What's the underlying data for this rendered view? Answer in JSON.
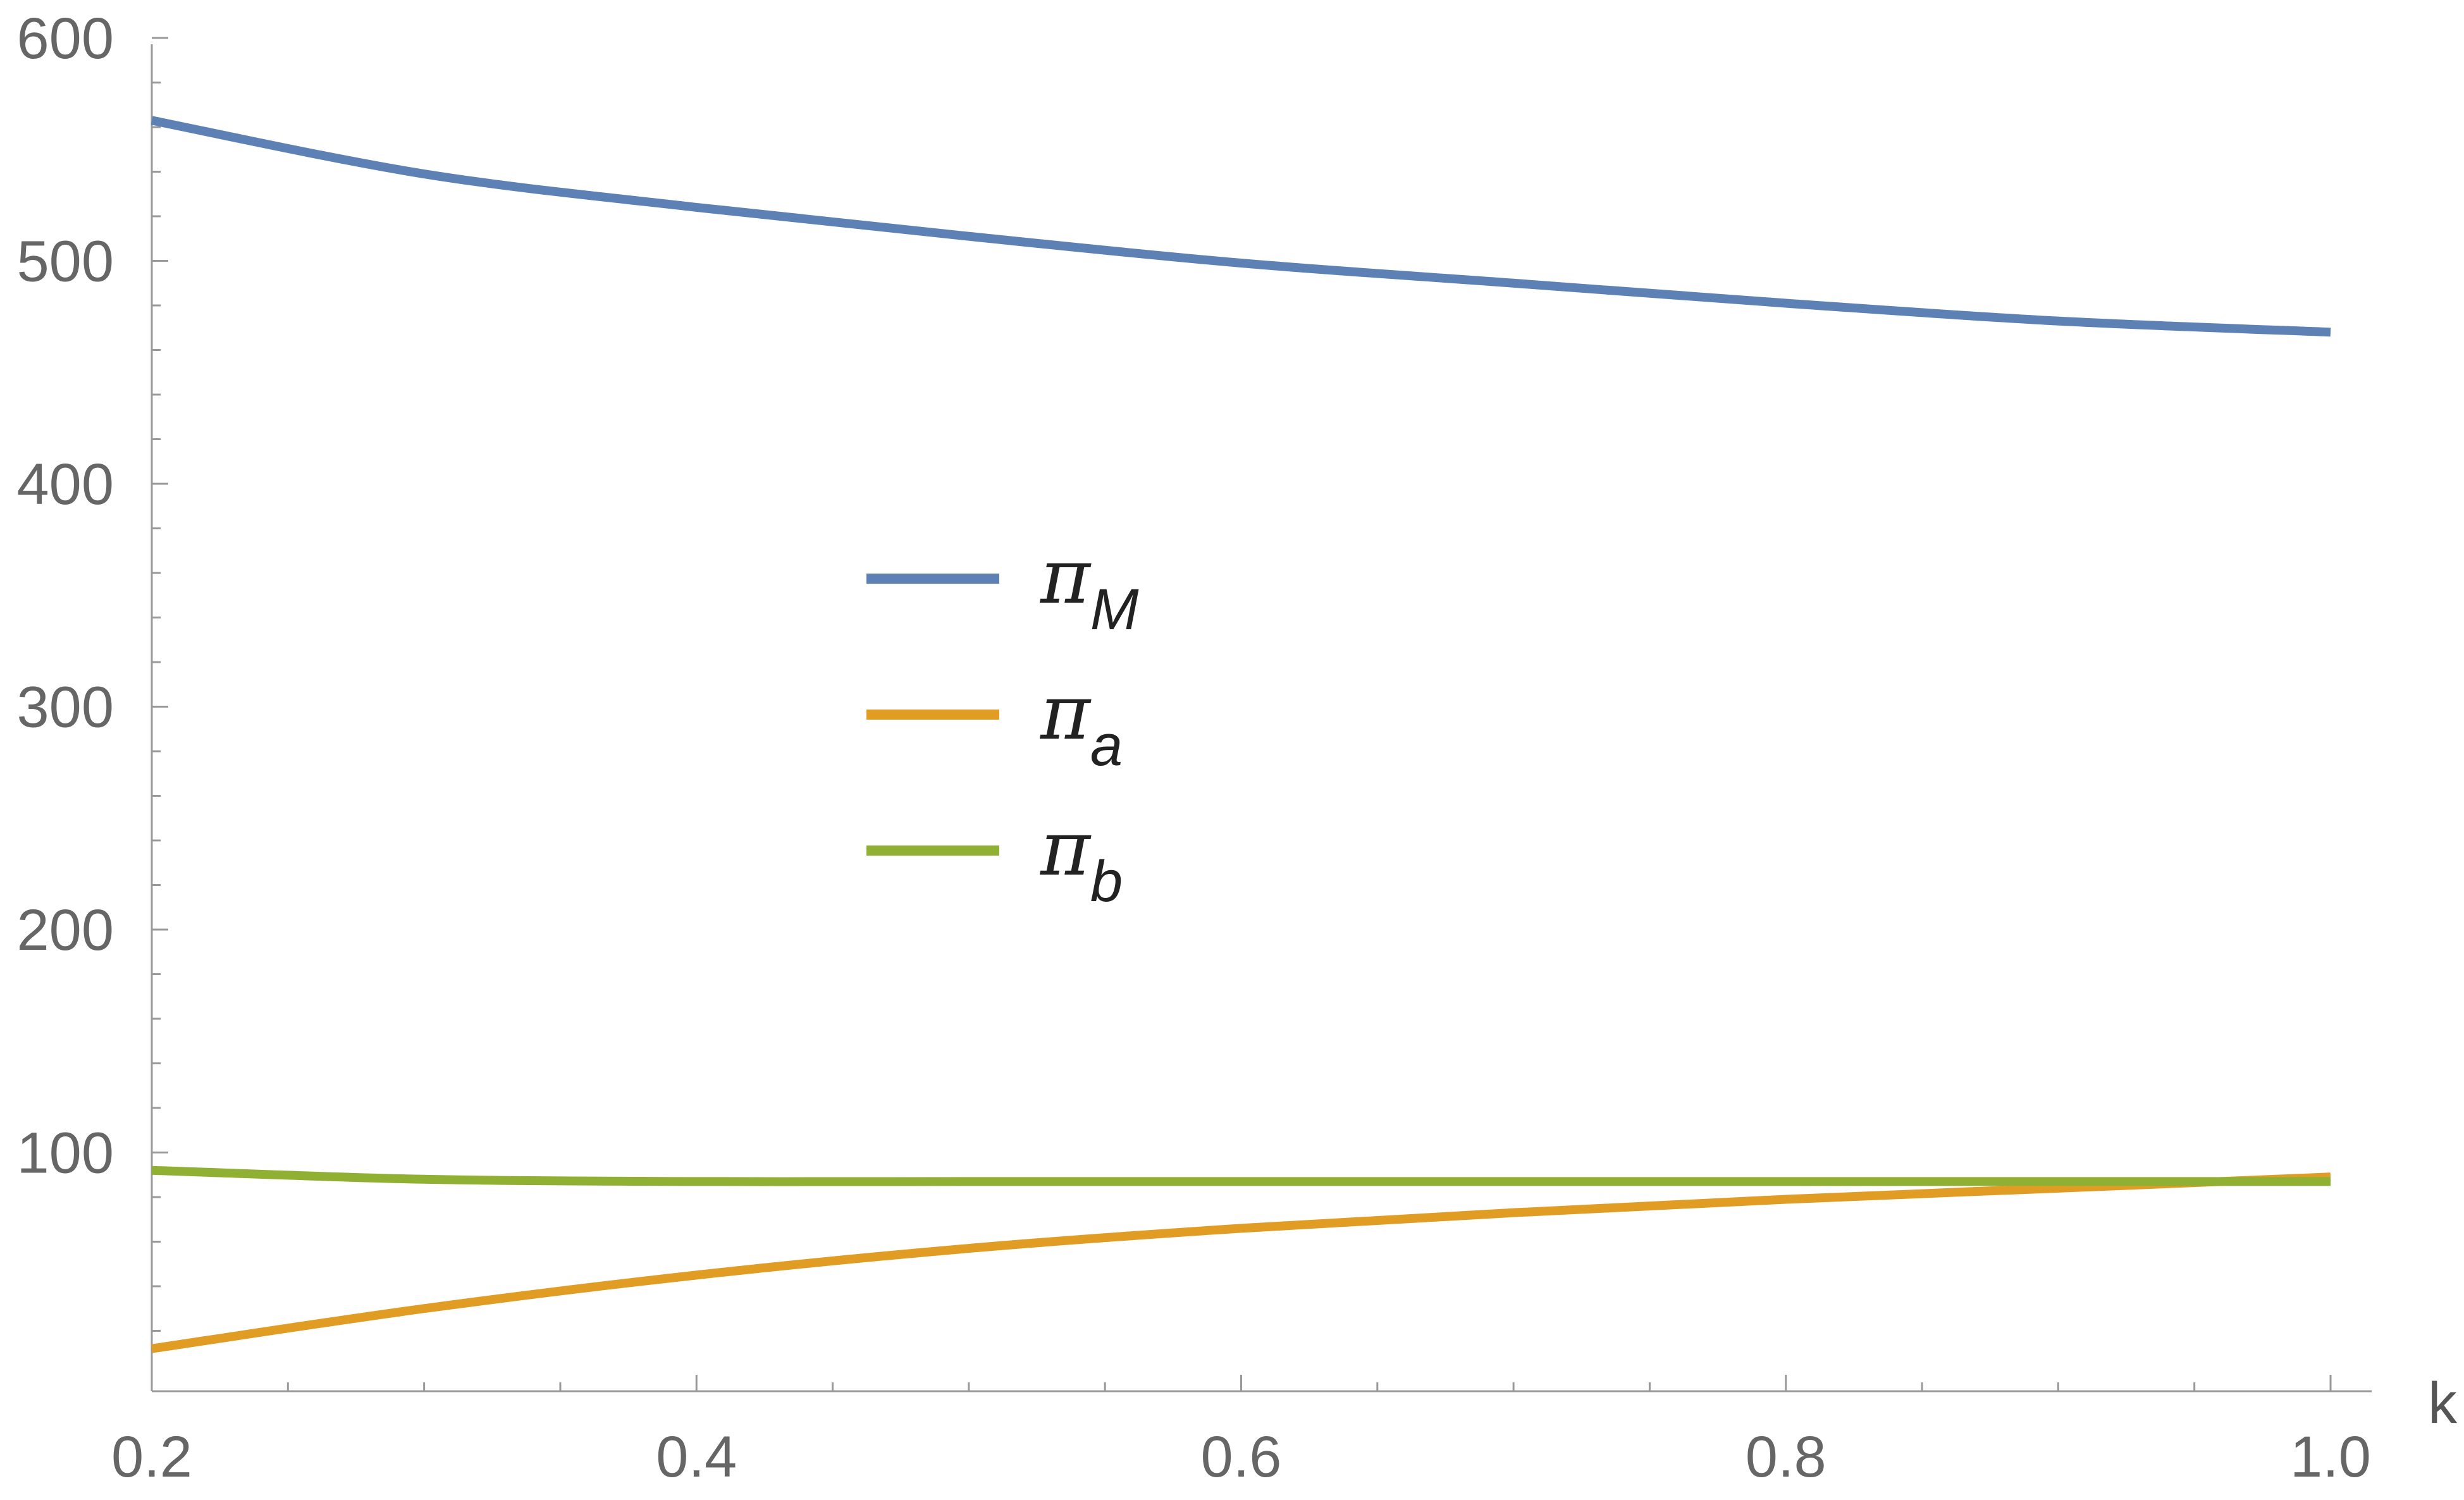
{
  "chart_data": {
    "type": "line",
    "title": "",
    "xlabel": "k",
    "ylabel": "",
    "xlim": [
      0.2,
      1.0
    ],
    "ylim": [
      0,
      600
    ],
    "x_ticks": [
      0.2,
      0.4,
      0.6,
      0.8,
      1.0
    ],
    "x_tick_labels": [
      "0.2",
      "0.4",
      "0.6",
      "0.8",
      "1.0"
    ],
    "y_ticks": [
      100,
      200,
      300,
      400,
      500,
      600
    ],
    "y_tick_labels": [
      "100",
      "200",
      "300",
      "400",
      "500",
      "600"
    ],
    "grid": false,
    "legend_position": "center-left",
    "x": [
      0.2,
      0.3,
      0.4,
      0.5,
      0.6,
      0.7,
      0.8,
      0.9,
      1.0
    ],
    "series": [
      {
        "name": "π",
        "subscript": "M",
        "color": "#5E81B5",
        "values": [
          563,
          539,
          524,
          511,
          499,
          490,
          481,
          473,
          468
        ]
      },
      {
        "name": "π",
        "subscript": "a",
        "color": "#E19C24",
        "values": [
          12,
          30,
          45,
          57,
          66,
          73,
          79,
          84,
          89
        ]
      },
      {
        "name": "π",
        "subscript": "b",
        "color": "#8FB032",
        "values": [
          92,
          88,
          87,
          87,
          87,
          87,
          87,
          87,
          87
        ]
      }
    ]
  }
}
